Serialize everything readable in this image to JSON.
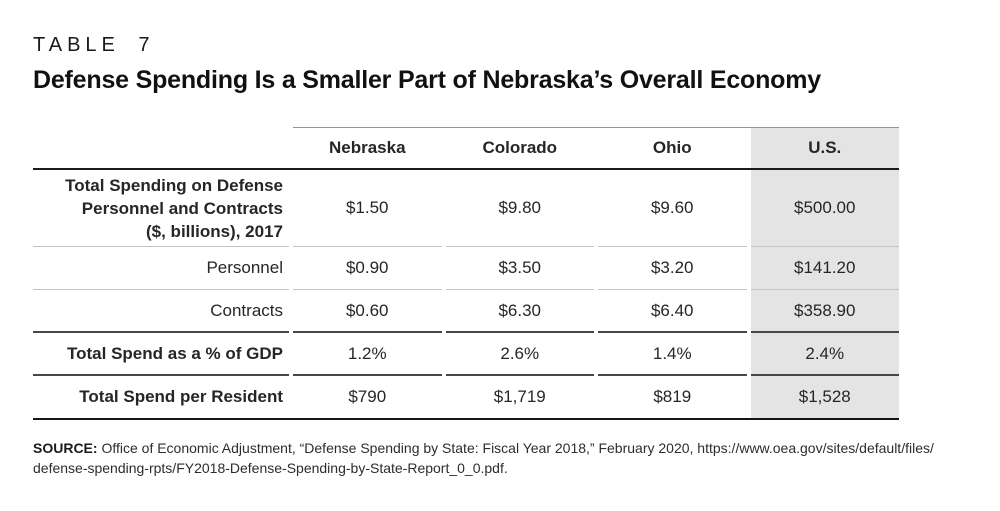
{
  "page": {
    "kicker": "TABLE 7",
    "title": "Defense Spending Is a Smaller Part of Nebraska’s Overall Economy"
  },
  "table": {
    "columns": [
      "Nebraska",
      "Colorado",
      "Ohio",
      "U.S."
    ],
    "highlight_column": "U.S.",
    "highlight_color": "#e4e4e4",
    "rows": [
      {
        "label": "Total Spending on Defense\nPersonnel and Contracts\n($, billions), 2017",
        "values": [
          "$1.50",
          "$9.80",
          "$9.60",
          "$500.00"
        ]
      },
      {
        "label": "Personnel",
        "values": [
          "$0.90",
          "$3.50",
          "$3.20",
          "$141.20"
        ]
      },
      {
        "label": "Contracts",
        "values": [
          "$0.60",
          "$6.30",
          "$6.40",
          "$358.90"
        ]
      },
      {
        "label": "Total Spend as a % of GDP",
        "values": [
          "1.2%",
          "2.6%",
          "1.4%",
          "2.4%"
        ]
      },
      {
        "label": "Total Spend per Resident",
        "values": [
          "$790",
          "$1,719",
          "$819",
          "$1,528"
        ]
      }
    ]
  },
  "chart_data": {
    "type": "table",
    "title": "Defense Spending Is a Smaller Part of Nebraska’s Overall Economy",
    "columns": [
      "Nebraska",
      "Colorado",
      "Ohio",
      "U.S."
    ],
    "rows": [
      [
        "Total Spending on Defense Personnel and Contracts ($, billions), 2017",
        "$1.50",
        "$9.80",
        "$9.60",
        "$500.00"
      ],
      [
        "Personnel",
        "$0.90",
        "$3.50",
        "$3.20",
        "$141.20"
      ],
      [
        "Contracts",
        "$0.60",
        "$6.30",
        "$6.40",
        "$358.90"
      ],
      [
        "Total Spend as a % of GDP",
        "1.2%",
        "2.6%",
        "1.4%",
        "2.4%"
      ],
      [
        "Total Spend per Resident",
        "$790",
        "$1,719",
        "$819",
        "$1,528"
      ]
    ]
  },
  "source": {
    "label": "SOURCE:",
    "line1": " Office of Economic Adjustment, “Defense Spending by State: Fiscal Year 2018,” February 2020, https://www.oea.gov/sites/default/files/",
    "line2": "defense-spending-rpts/FY2018-Defense-Spending-by-State-Report_0_0.pdf."
  }
}
